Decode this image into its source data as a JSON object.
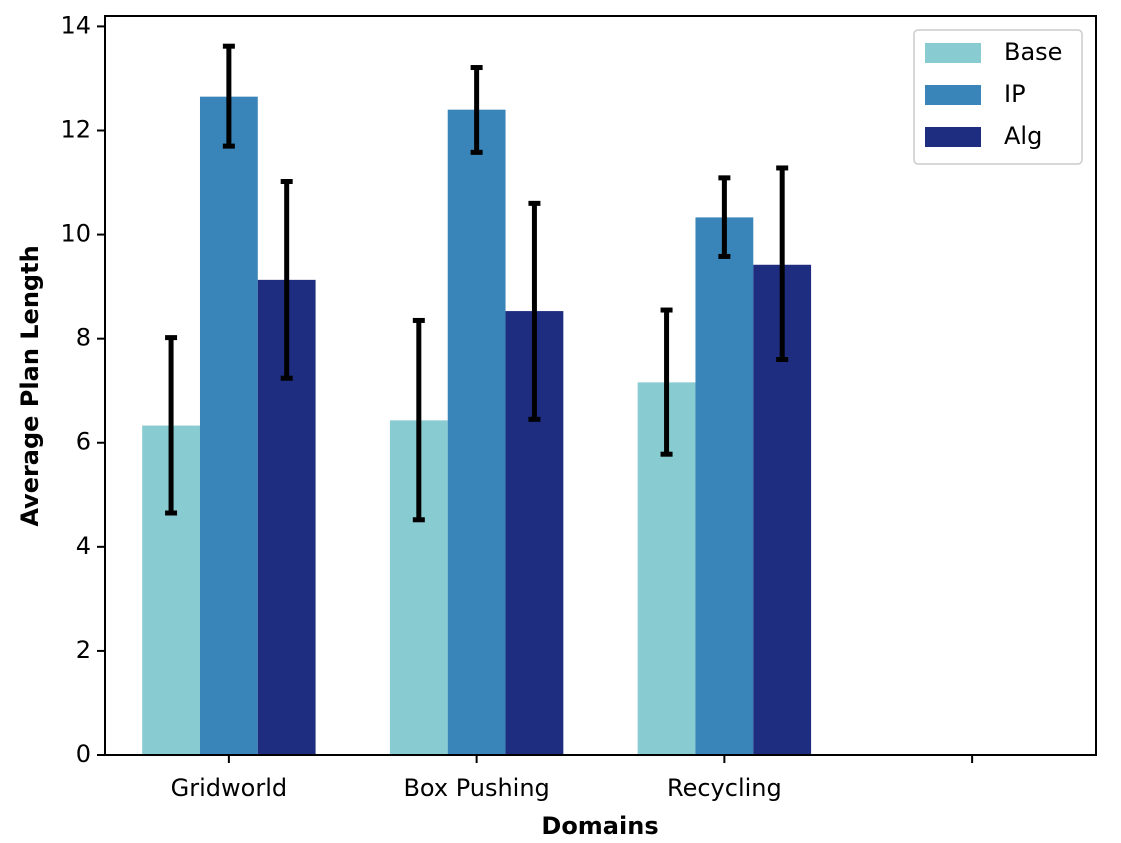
{
  "chart_data": {
    "type": "bar",
    "title": "",
    "xlabel": "Domains",
    "ylabel": "Average Plan Length",
    "ylim": [
      0,
      14.2
    ],
    "yticks": [
      0,
      2,
      4,
      6,
      8,
      10,
      12,
      14
    ],
    "categories": [
      "Gridworld",
      "Box Pushing",
      "Recycling"
    ],
    "extra_empty_slot": true,
    "grid": false,
    "legend_position": "top-right",
    "series": [
      {
        "name": "Base",
        "color": "#88cbd1",
        "values": [
          6.33,
          6.43,
          7.16
        ],
        "err_low": [
          4.65,
          4.52,
          5.78
        ],
        "err_high": [
          8.02,
          8.35,
          8.55
        ]
      },
      {
        "name": "IP",
        "color": "#3984b8",
        "values": [
          12.65,
          12.4,
          10.33
        ],
        "err_low": [
          11.7,
          11.58,
          9.58
        ],
        "err_high": [
          13.62,
          13.21,
          11.09
        ]
      },
      {
        "name": "Alg",
        "color": "#1e2d80",
        "values": [
          9.13,
          8.53,
          9.42
        ],
        "err_low": [
          7.24,
          6.45,
          7.6
        ],
        "err_high": [
          11.02,
          10.6,
          11.28
        ]
      }
    ]
  }
}
